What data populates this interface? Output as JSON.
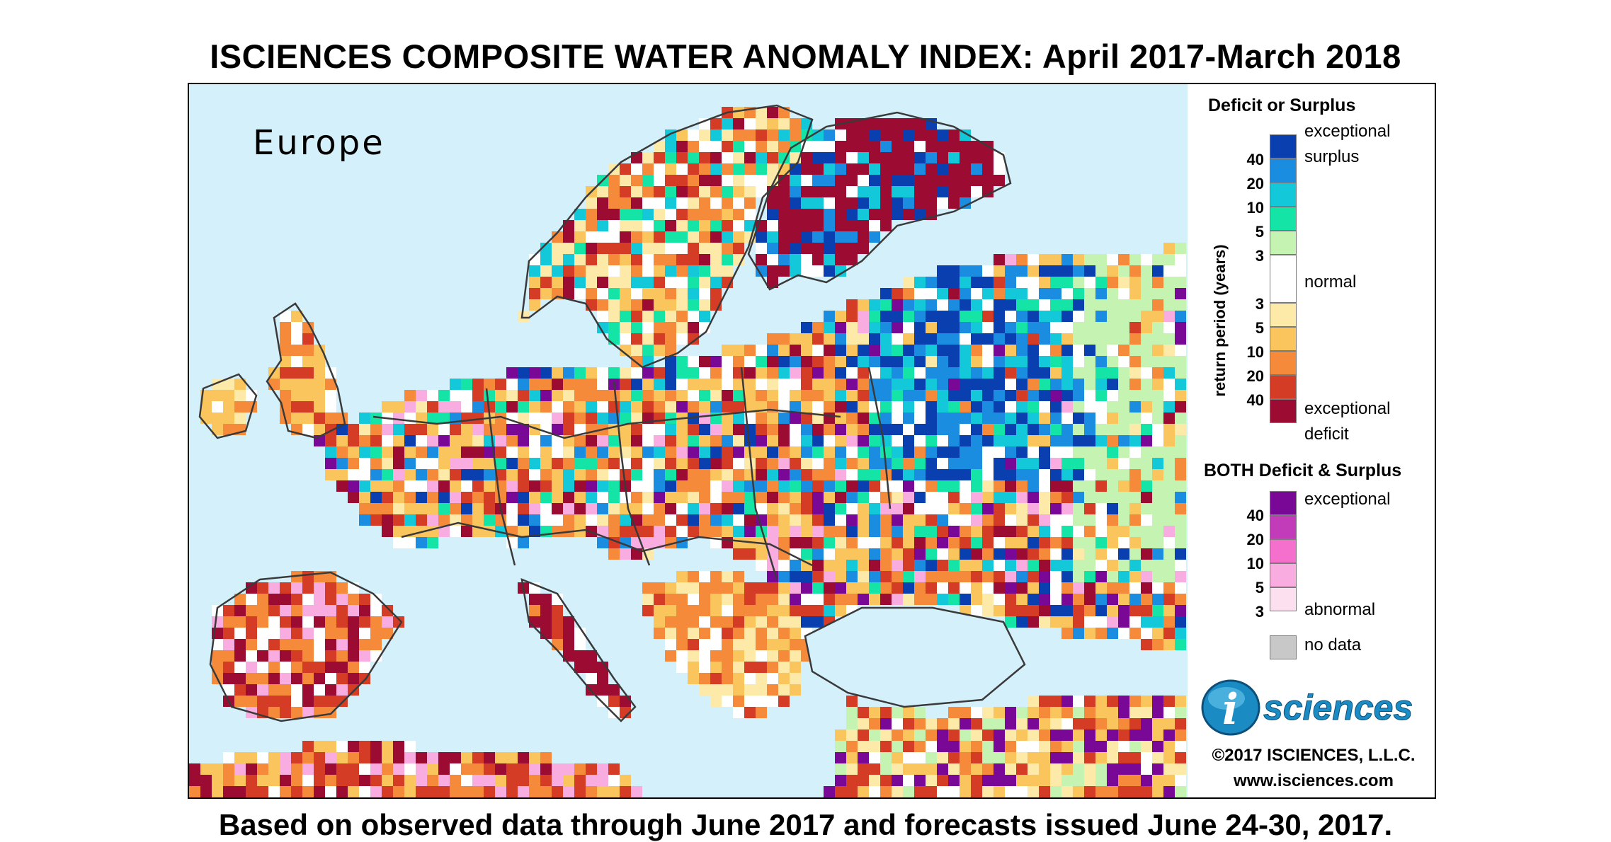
{
  "title": "ISCIENCES COMPOSITE WATER ANOMALY INDEX: April 2017-March 2018",
  "footer": "Based on observed data through June 2017 and forecasts issued June 24-30, 2017.",
  "map": {
    "region_label": "Europe"
  },
  "legend": {
    "section1_title": "Deficit or Surplus",
    "axis_title": "return period (years)",
    "surplus_ticks": [
      "40",
      "20",
      "10",
      "5",
      "3"
    ],
    "deficit_ticks": [
      "3",
      "5",
      "10",
      "20",
      "40"
    ],
    "label_exceptional_surplus_1": "exceptional",
    "label_exceptional_surplus_2": "surplus",
    "label_normal": "normal",
    "label_exceptional_deficit_1": "exceptional",
    "label_exceptional_deficit_2": "deficit",
    "surplus_colors": [
      "#0a3fb0",
      "#1a8de0",
      "#13c8d8",
      "#14e5a6",
      "#c4f3b2"
    ],
    "normal_color": "#ffffff",
    "deficit_colors": [
      "#fde9a8",
      "#fbc55e",
      "#f58a3a",
      "#d43c25",
      "#9b0b32"
    ],
    "section2_title": "BOTH Deficit & Surplus",
    "both_ticks": [
      "40",
      "20",
      "10",
      "5",
      "3"
    ],
    "label_both_exceptional": "exceptional",
    "label_both_abnormal": "abnormal",
    "both_colors": [
      "#7a0896",
      "#c23bb8",
      "#f56fcd",
      "#f9acdf",
      "#fde0f0"
    ],
    "no_data_label": "no data",
    "no_data_color": "#c8c8c8"
  },
  "logo_text": "sciences",
  "logo_letter": "i",
  "copyright": "©2017 ISCIENCES, L.L.C.",
  "website": "www.isciences.com",
  "colors": {
    "sea": "#d4f0fb",
    "border": "#3a3a3a"
  }
}
